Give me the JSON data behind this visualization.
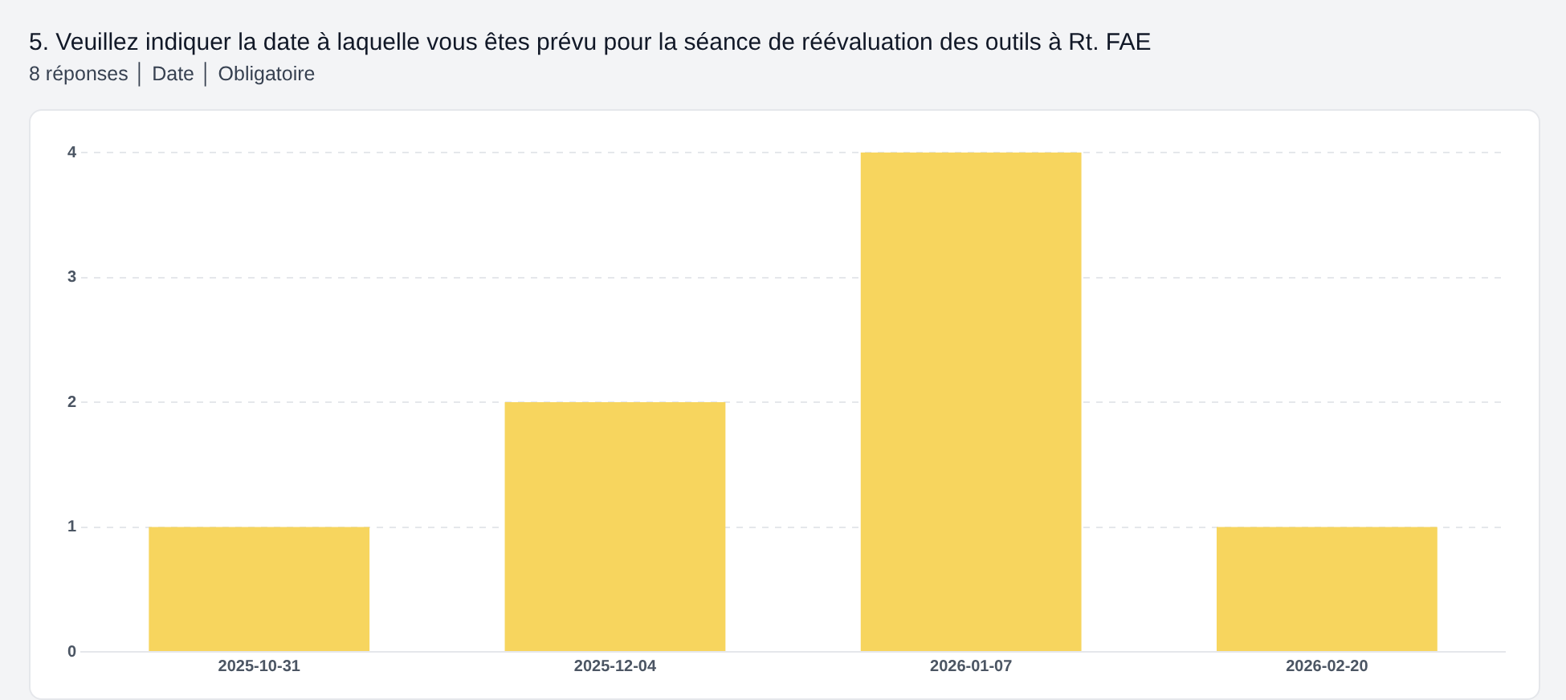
{
  "chart_data": {
    "type": "bar",
    "title": "5. Veuillez indiquer la date à laquelle vous êtes prévu pour la séance de réévaluation des outils à Rt. FAE",
    "subtitle": "8 réponses │ Date │ Obligatoire",
    "categories": [
      "2025-10-31",
      "2025-12-04",
      "2026-01-07",
      "2026-02-20"
    ],
    "values": [
      1,
      2,
      4,
      1
    ],
    "color": "#f7d55e",
    "ylim": [
      0,
      4
    ],
    "yticks": [
      0,
      1,
      2,
      3,
      4
    ],
    "grid": "y"
  }
}
